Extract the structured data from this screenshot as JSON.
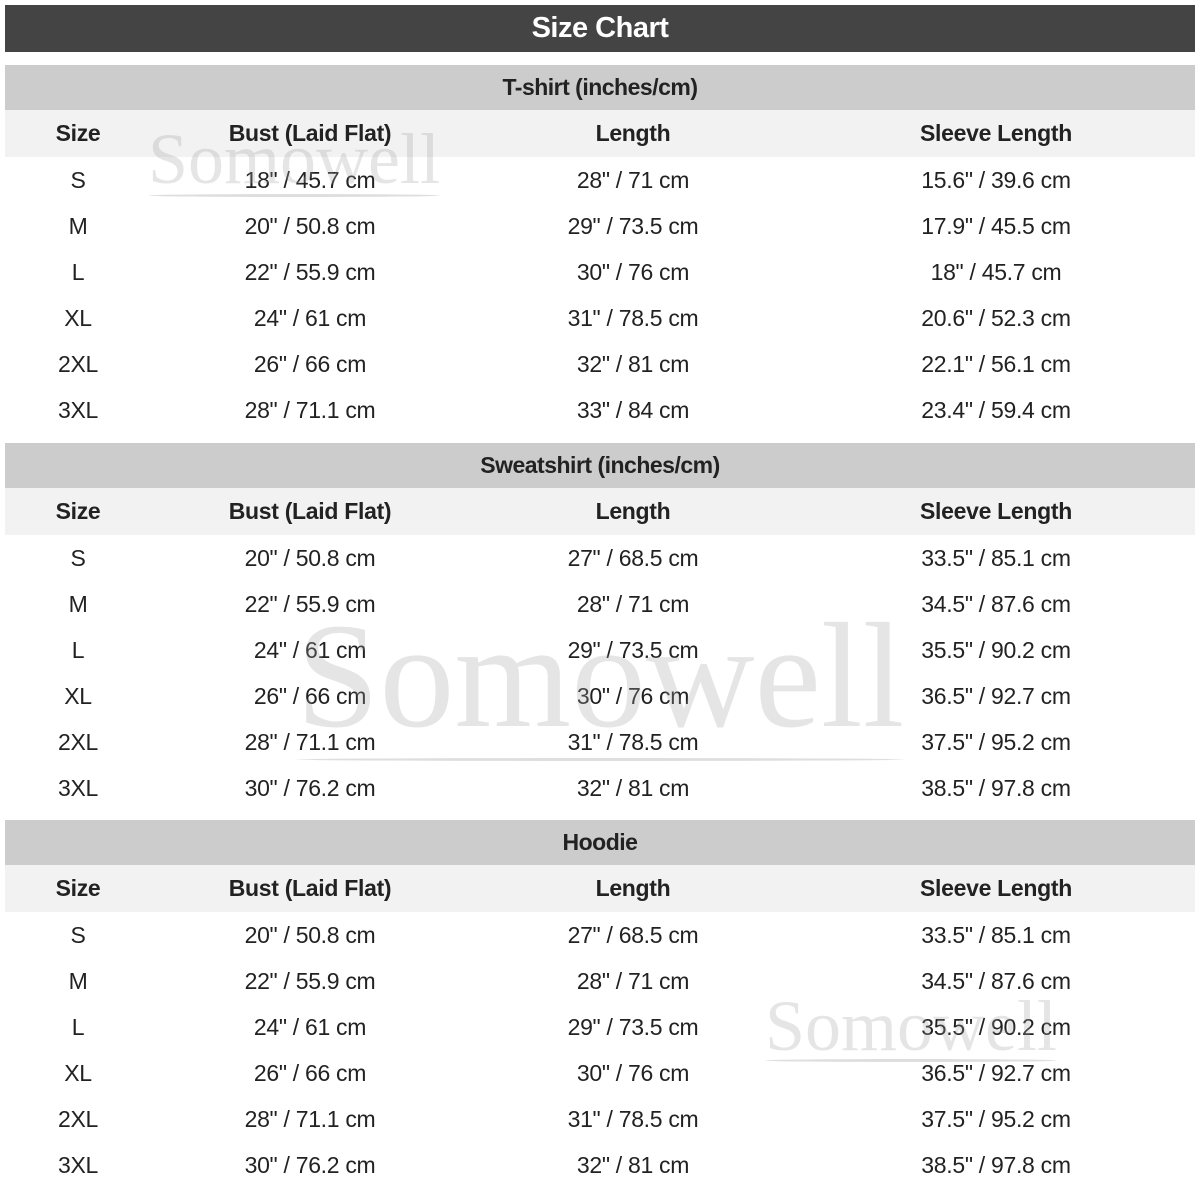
{
  "title": "Size Chart",
  "watermark": "Somowell",
  "columns": [
    "Size",
    "Bust (Laid Flat)",
    "Length",
    "Sleeve Length"
  ],
  "sections": [
    {
      "title": "T-shirt (inches/cm)",
      "rows": [
        [
          "S",
          "18\" / 45.7 cm",
          "28\" / 71 cm",
          "15.6\" / 39.6 cm"
        ],
        [
          "M",
          "20\" / 50.8 cm",
          "29\" / 73.5 cm",
          "17.9\" / 45.5 cm"
        ],
        [
          "L",
          "22\" / 55.9 cm",
          "30\" / 76 cm",
          "18\" / 45.7 cm"
        ],
        [
          "XL",
          "24\" / 61 cm",
          "31\" / 78.5 cm",
          "20.6\" / 52.3 cm"
        ],
        [
          "2XL",
          "26\" / 66 cm",
          "32\" / 81 cm",
          "22.1\" / 56.1 cm"
        ],
        [
          "3XL",
          "28\" / 71.1 cm",
          "33\" / 84 cm",
          "23.4\" / 59.4 cm"
        ]
      ]
    },
    {
      "title": "Sweatshirt (inches/cm)",
      "rows": [
        [
          "S",
          "20\" / 50.8 cm",
          "27\" / 68.5 cm",
          "33.5\" / 85.1 cm"
        ],
        [
          "M",
          "22\" / 55.9 cm",
          "28\" / 71 cm",
          "34.5\" / 87.6 cm"
        ],
        [
          "L",
          "24\" / 61 cm",
          "29\" / 73.5 cm",
          "35.5\" / 90.2 cm"
        ],
        [
          "XL",
          "26\" / 66 cm",
          "30\" / 76 cm",
          "36.5\" / 92.7 cm"
        ],
        [
          "2XL",
          "28\" / 71.1 cm",
          "31\" / 78.5 cm",
          "37.5\" / 95.2 cm"
        ],
        [
          "3XL",
          "30\" / 76.2 cm",
          "32\" / 81 cm",
          "38.5\" / 97.8 cm"
        ]
      ]
    },
    {
      "title": "Hoodie",
      "rows": [
        [
          "S",
          "20\" / 50.8 cm",
          "27\" / 68.5 cm",
          "33.5\" / 85.1 cm"
        ],
        [
          "M",
          "22\" / 55.9 cm",
          "28\" / 71 cm",
          "34.5\" / 87.6 cm"
        ],
        [
          "L",
          "24\" / 61 cm",
          "29\" / 73.5 cm",
          "35.5\" / 90.2 cm"
        ],
        [
          "XL",
          "26\" / 66 cm",
          "30\" / 76 cm",
          "36.5\" / 92.7 cm"
        ],
        [
          "2XL",
          "28\" / 71.1 cm",
          "31\" / 78.5 cm",
          "37.5\" / 95.2 cm"
        ],
        [
          "3XL",
          "30\" / 76.2 cm",
          "32\" / 81 cm",
          "38.5\" / 97.8 cm"
        ]
      ]
    }
  ]
}
